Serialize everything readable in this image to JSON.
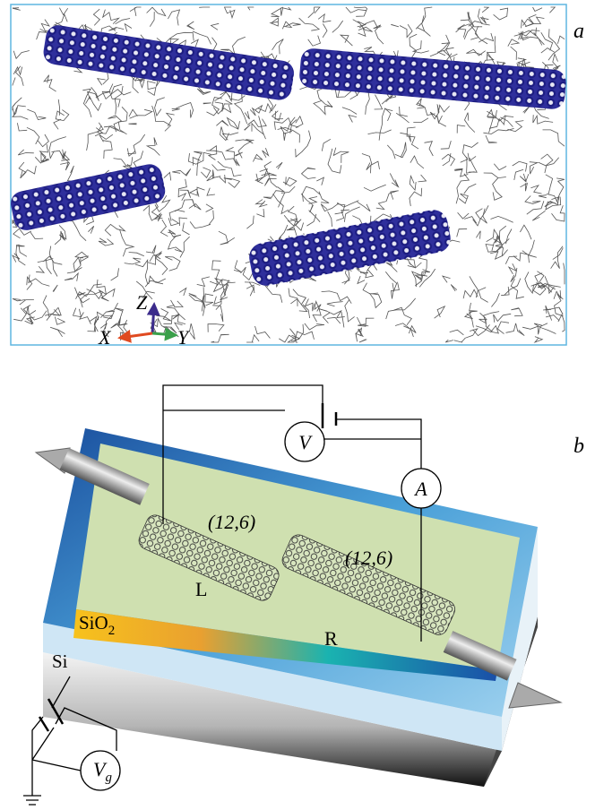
{
  "panel_a": {
    "label": "a",
    "axes": {
      "x": "X",
      "y": "Y",
      "z": "Z"
    }
  },
  "panel_b": {
    "label": "b",
    "voltmeter": "V",
    "ammeter": "A",
    "left_tube": {
      "chirality": "(12,6)",
      "label": "L"
    },
    "right_tube": {
      "chirality": "(12,6)",
      "label": "R"
    },
    "oxide": {
      "text": "SiO",
      "subscript": "2"
    },
    "substrate": "Si",
    "gate_voltmeter": {
      "text": "V",
      "subscript": "g"
    }
  }
}
